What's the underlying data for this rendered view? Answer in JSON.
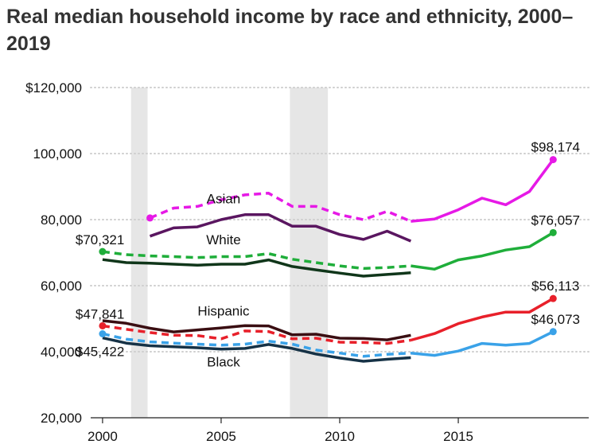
{
  "chart_data": {
    "type": "line",
    "title": "Real median household income by race and ethnicity, 2000–2019",
    "xlabel": "",
    "ylabel": "",
    "xlim": [
      1999.5,
      2020.5
    ],
    "ylim": [
      20000,
      120000
    ],
    "x_ticks": [
      {
        "value": 2000,
        "label": "2000"
      },
      {
        "value": 2005,
        "label": "2005"
      },
      {
        "value": 2010,
        "label": "2010"
      },
      {
        "value": 2015,
        "label": "2015"
      }
    ],
    "y_ticks": [
      {
        "value": 20000,
        "label": "20,000"
      },
      {
        "value": 40000,
        "label": "40,000"
      },
      {
        "value": 60000,
        "label": "60,000"
      },
      {
        "value": 80000,
        "label": "80,000"
      },
      {
        "value": 100000,
        "label": "100,000"
      },
      {
        "value": 120000,
        "label": "$120,000"
      }
    ],
    "grid": "horizontal dotted",
    "recessions": [
      {
        "start": 2001.2,
        "end": 2001.9
      },
      {
        "start": 2007.9,
        "end": 2009.5
      }
    ],
    "series": [
      {
        "name": "Asian",
        "color": "#e619e6",
        "old": {
          "x": [
            2002,
            2003,
            2004,
            2005,
            2006,
            2007,
            2008,
            2009,
            2010,
            2011,
            2012,
            2013
          ],
          "y": [
            80500,
            83500,
            84000,
            86000,
            87500,
            88000,
            84000,
            84000,
            81500,
            80000,
            82500,
            79500
          ],
          "style": "dashed"
        },
        "old_alt": {
          "x": [
            2002,
            2003,
            2004,
            2005,
            2006,
            2007,
            2008,
            2009,
            2010,
            2011,
            2012,
            2013
          ],
          "y": [
            75000,
            77500,
            77800,
            80000,
            81500,
            81500,
            78000,
            78000,
            75500,
            74000,
            76500,
            73500
          ],
          "color": "#5a1660"
        },
        "new": {
          "x": [
            2013,
            2014,
            2015,
            2016,
            2017,
            2018,
            2019
          ],
          "y": [
            79500,
            80200,
            83000,
            86500,
            84500,
            88500,
            98174
          ]
        }
      },
      {
        "name": "White",
        "color": "#1fae3a",
        "old": {
          "x": [
            2000,
            2001,
            2002,
            2003,
            2004,
            2005,
            2006,
            2007,
            2008,
            2009,
            2010,
            2011,
            2012,
            2013
          ],
          "y": [
            70321,
            69400,
            69000,
            68800,
            68500,
            68800,
            68800,
            69700,
            68000,
            67000,
            66000,
            65200,
            65500,
            66000
          ],
          "style": "dashed"
        },
        "old_alt": {
          "x": [
            2000,
            2001,
            2002,
            2003,
            2004,
            2005,
            2006,
            2007,
            2008,
            2009,
            2010,
            2011,
            2012,
            2013
          ],
          "y": [
            67900,
            67000,
            66800,
            66500,
            66200,
            66500,
            66500,
            67800,
            65800,
            64800,
            63800,
            62900,
            63400,
            63900
          ],
          "color": "#10361a"
        },
        "new": {
          "x": [
            2013,
            2014,
            2015,
            2016,
            2017,
            2018,
            2019
          ],
          "y": [
            66000,
            65000,
            67800,
            69000,
            70800,
            71800,
            76057
          ]
        }
      },
      {
        "name": "Hispanic",
        "color": "#e8202a",
        "old": {
          "x": [
            2000,
            2001,
            2002,
            2003,
            2004,
            2005,
            2006,
            2007,
            2008,
            2009,
            2010,
            2011,
            2012,
            2013
          ],
          "y": [
            47841,
            46800,
            45800,
            45000,
            44900,
            43900,
            46300,
            46100,
            43900,
            44100,
            42900,
            42800,
            42500,
            43500
          ],
          "style": "dashed"
        },
        "old_alt": {
          "x": [
            2000,
            2001,
            2002,
            2003,
            2004,
            2005,
            2006,
            2007,
            2008,
            2009,
            2010,
            2011,
            2012,
            2013
          ],
          "y": [
            49400,
            48600,
            47100,
            46000,
            46600,
            47200,
            47900,
            47800,
            45100,
            45300,
            44100,
            44000,
            43600,
            45000
          ],
          "color": "#3a0e12"
        },
        "new": {
          "x": [
            2013,
            2014,
            2015,
            2016,
            2017,
            2018,
            2019
          ],
          "y": [
            43500,
            45500,
            48500,
            50500,
            52000,
            52000,
            56113
          ]
        }
      },
      {
        "name": "Black",
        "color": "#3aa2e8",
        "old": {
          "x": [
            2000,
            2001,
            2002,
            2003,
            2004,
            2005,
            2006,
            2007,
            2008,
            2009,
            2010,
            2011,
            2012,
            2013
          ],
          "y": [
            45422,
            43800,
            43000,
            42600,
            42300,
            42000,
            42300,
            43200,
            42300,
            40500,
            39600,
            38600,
            39200,
            39600
          ],
          "style": "dashed"
        },
        "old_alt": {
          "x": [
            2000,
            2001,
            2002,
            2003,
            2004,
            2005,
            2006,
            2007,
            2008,
            2009,
            2010,
            2011,
            2012,
            2013
          ],
          "y": [
            44200,
            42600,
            41800,
            41500,
            41200,
            40800,
            41000,
            42200,
            41000,
            39300,
            38100,
            37100,
            37700,
            38200
          ],
          "color": "#163246"
        },
        "new": {
          "x": [
            2013,
            2014,
            2015,
            2016,
            2017,
            2018,
            2019
          ],
          "y": [
            39600,
            38900,
            40200,
            42500,
            42000,
            42500,
            46073
          ]
        }
      }
    ],
    "series_labels": [
      {
        "text": "Asian",
        "x": 2005.1,
        "y": 85000
      },
      {
        "text": "White",
        "x": 2005.1,
        "y": 72500
      },
      {
        "text": "Hispanic",
        "x": 2005.1,
        "y": 51000
      },
      {
        "text": "Black",
        "x": 2005.1,
        "y": 35500
      }
    ],
    "annotations": [
      {
        "text": "$70,321",
        "x": 2000,
        "y": 70321,
        "anchor": "start-left-above"
      },
      {
        "text": "$47,841",
        "x": 2000,
        "y": 47841,
        "anchor": "start-left-above"
      },
      {
        "text": "$45,422",
        "x": 2000,
        "y": 45422,
        "anchor": "start-left-below"
      },
      {
        "text": "$98,174",
        "x": 2019,
        "y": 98174,
        "anchor": "end-above"
      },
      {
        "text": "$76,057",
        "x": 2019,
        "y": 76057,
        "anchor": "end-above"
      },
      {
        "text": "$56,113",
        "x": 2019,
        "y": 56113,
        "anchor": "end-above"
      },
      {
        "text": "$46,073",
        "x": 2019,
        "y": 46073,
        "anchor": "end-above"
      }
    ]
  }
}
